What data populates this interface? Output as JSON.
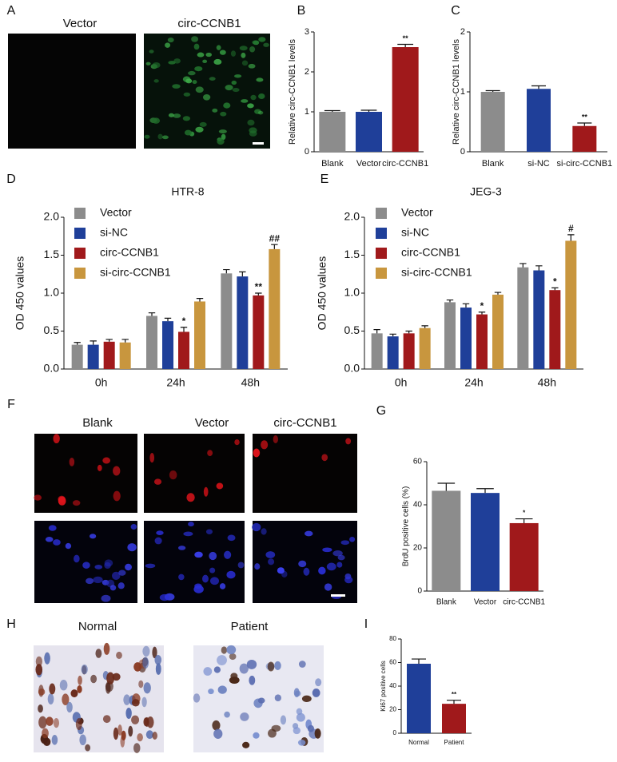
{
  "figure": {
    "panel_labels": [
      "A",
      "B",
      "C",
      "D",
      "E",
      "F",
      "G",
      "H",
      "I"
    ],
    "image_captions": [
      "Vector",
      "circ-CCNB1",
      "Blank",
      "Vector",
      "circ-CCNB1",
      "Normal",
      "Patient"
    ]
  },
  "chart_data": [
    {
      "type": "bar",
      "ylabel": "Relative circ-CCNB1 levels",
      "categories": [
        "Blank",
        "Vector",
        "circ-CCNB1"
      ],
      "values": [
        1.0,
        1.0,
        2.62
      ],
      "errors": [
        0.03,
        0.04,
        0.07
      ],
      "colors": [
        "#8c8c8c",
        "#1f3f99",
        "#a0191b"
      ],
      "significance": [
        null,
        null,
        "**"
      ],
      "ylim": [
        0,
        3
      ],
      "yticks": [
        0,
        1,
        2,
        3
      ]
    },
    {
      "type": "bar",
      "ylabel": "Relative circ-CCNB1 levels",
      "categories": [
        "Blank",
        "si-NC",
        "si-circ-CCNB1"
      ],
      "values": [
        1.0,
        1.05,
        0.43
      ],
      "errors": [
        0.02,
        0.05,
        0.05
      ],
      "colors": [
        "#8c8c8c",
        "#1f3f99",
        "#a0191b"
      ],
      "significance": [
        null,
        null,
        "**"
      ],
      "ylim": [
        0,
        2
      ],
      "yticks": [
        0,
        1,
        2
      ]
    },
    {
      "type": "grouped-bar",
      "title": "HTR-8",
      "ylabel": "OD 450 values",
      "categories": [
        "0h",
        "24h",
        "48h"
      ],
      "series": [
        {
          "name": "Vector",
          "color": "#8c8c8c",
          "values": [
            0.32,
            0.7,
            1.26
          ],
          "errors": [
            0.03,
            0.04,
            0.05
          ],
          "significance": [
            null,
            null,
            null
          ]
        },
        {
          "name": "si-NC",
          "color": "#1f3f99",
          "values": [
            0.32,
            0.63,
            1.22
          ],
          "errors": [
            0.05,
            0.04,
            0.06
          ],
          "significance": [
            null,
            null,
            null
          ]
        },
        {
          "name": "circ-CCNB1",
          "color": "#a0191b",
          "values": [
            0.36,
            0.49,
            0.97
          ],
          "errors": [
            0.03,
            0.06,
            0.03
          ],
          "significance": [
            null,
            "*",
            "**"
          ]
        },
        {
          "name": "si-circ-CCNB1",
          "color": "#c8963e",
          "values": [
            0.35,
            0.89,
            1.58
          ],
          "errors": [
            0.04,
            0.04,
            0.06
          ],
          "significance": [
            null,
            null,
            "##"
          ]
        }
      ],
      "ylim": [
        0,
        2
      ],
      "yticks": [
        {
          "value": 0,
          "label": "0.0"
        },
        0.5,
        {
          "value": 1,
          "label": "1.0"
        },
        1.5,
        {
          "value": 2,
          "label": "2.0"
        }
      ]
    },
    {
      "type": "grouped-bar",
      "title": "JEG-3",
      "ylabel": "OD 450 values",
      "categories": [
        "0h",
        "24h",
        "48h"
      ],
      "series": [
        {
          "name": "Vector",
          "color": "#8c8c8c",
          "values": [
            0.47,
            0.88,
            1.34
          ],
          "errors": [
            0.05,
            0.03,
            0.05
          ],
          "significance": [
            null,
            null,
            null
          ]
        },
        {
          "name": "si-NC",
          "color": "#1f3f99",
          "values": [
            0.43,
            0.81,
            1.3
          ],
          "errors": [
            0.03,
            0.05,
            0.06
          ],
          "significance": [
            null,
            null,
            null
          ]
        },
        {
          "name": "circ-CCNB1",
          "color": "#a0191b",
          "values": [
            0.47,
            0.72,
            1.04
          ],
          "errors": [
            0.03,
            0.03,
            0.03
          ],
          "significance": [
            null,
            "*",
            "*"
          ]
        },
        {
          "name": "si-circ-CCNB1",
          "color": "#c8963e",
          "values": [
            0.54,
            0.98,
            1.69
          ],
          "errors": [
            0.03,
            0.03,
            0.08
          ],
          "significance": [
            null,
            null,
            "#"
          ]
        }
      ],
      "ylim": [
        0,
        2
      ],
      "yticks": [
        {
          "value": 0,
          "label": "0.0"
        },
        0.5,
        {
          "value": 1,
          "label": "1.0"
        },
        1.5,
        {
          "value": 2,
          "label": "2.0"
        }
      ]
    },
    {
      "type": "bar",
      "ylabel": "BrdU positive cells (%)",
      "categories": [
        "Blank",
        "Vector",
        "circ-CCNB1"
      ],
      "values": [
        46.5,
        45.5,
        31.5
      ],
      "errors": [
        3.5,
        2.0,
        2.0
      ],
      "colors": [
        "#8c8c8c",
        "#1f3f99",
        "#a0191b"
      ],
      "significance": [
        null,
        null,
        "*"
      ],
      "ylim": [
        0,
        60
      ],
      "yticks": [
        0,
        20,
        40,
        60
      ]
    },
    {
      "type": "bar",
      "ylabel": "Ki67 positive cells",
      "categories": [
        "Normal",
        "Patient"
      ],
      "values": [
        59,
        25
      ],
      "errors": [
        4,
        3
      ],
      "colors": [
        "#1f3f99",
        "#a0191b"
      ],
      "significance": [
        null,
        "**"
      ],
      "ylim": [
        0,
        80
      ],
      "yticks": [
        0,
        20,
        40,
        60,
        80
      ]
    }
  ]
}
